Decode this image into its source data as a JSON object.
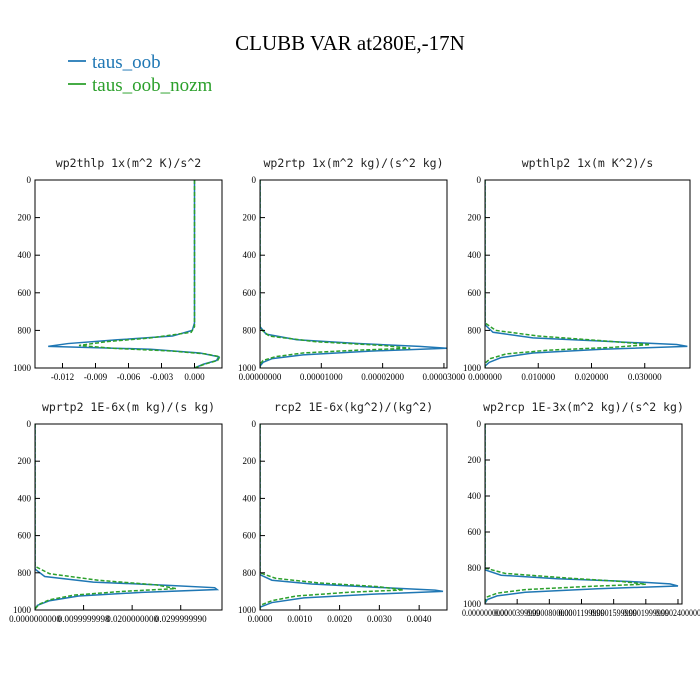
{
  "title": "CLUBB VAR at280E,-17N",
  "legend": [
    {
      "name": "taus_oob",
      "color": "#1f77b4",
      "style": "solid"
    },
    {
      "name": "taus_oob_nozm",
      "color": "#2ca02c",
      "style": "dashed"
    }
  ],
  "chart_data": [
    {
      "type": "line",
      "title": "wp2thlp  1x(m^2 K)/s^2",
      "xlim": [
        -0.0145,
        0.0025
      ],
      "ylim": [
        1000,
        0
      ],
      "xticks": [
        -0.012,
        -0.009,
        -0.006,
        -0.003,
        0.0
      ],
      "xtick_labels": [
        "-0.012",
        "-0.009",
        "-0.006",
        "-0.003",
        "0.000"
      ],
      "yticks": [
        0,
        200,
        400,
        600,
        800,
        1000
      ],
      "ytick_labels": [
        "0",
        "200",
        "400",
        "600",
        "800",
        "1000"
      ],
      "series": [
        {
          "name": "taus_oob",
          "y": [
            0,
            760,
            800,
            830,
            850,
            870,
            885,
            900,
            920,
            940,
            960,
            980,
            1000
          ],
          "x": [
            0.0,
            0.0,
            -0.0002,
            -0.002,
            -0.007,
            -0.0115,
            -0.0133,
            -0.004,
            0.0005,
            0.0022,
            0.002,
            0.0008,
            0.0
          ]
        },
        {
          "name": "taus_oob_nozm",
          "y": [
            0,
            780,
            810,
            840,
            860,
            880,
            895,
            910,
            925,
            940,
            960,
            980,
            1000
          ],
          "x": [
            0.0,
            0.0,
            -0.0003,
            -0.004,
            -0.008,
            -0.0105,
            -0.0075,
            -0.002,
            0.001,
            0.0023,
            0.0021,
            0.0009,
            0.0
          ]
        }
      ]
    },
    {
      "type": "line",
      "title": "wp2rtp  1x(m^2 kg)/(s^2 kg)",
      "xlim": [
        0.0,
        3.05e-05
      ],
      "ylim": [
        1000,
        0
      ],
      "xticks": [
        0.0,
        1e-05,
        2e-05,
        3e-05
      ],
      "xtick_labels": [
        "0.00000000",
        "0.00001000",
        "0.00002000",
        "0.00003000"
      ],
      "yticks": [
        0,
        200,
        400,
        600,
        800,
        1000
      ],
      "ytick_labels": [
        "0",
        "200",
        "400",
        "600",
        "800",
        "1000"
      ],
      "series": [
        {
          "name": "taus_oob",
          "y": [
            0,
            780,
            820,
            850,
            870,
            885,
            895,
            910,
            930,
            950,
            970,
            990,
            1000
          ],
          "x": [
            0.0,
            0.0,
            1e-06,
            6e-06,
            1.6e-05,
            2.6e-05,
            3.05e-05,
            1.8e-05,
            7e-06,
            2e-06,
            5e-07,
            0.0,
            0.0
          ]
        },
        {
          "name": "taus_oob_nozm",
          "y": [
            0,
            790,
            830,
            860,
            880,
            895,
            905,
            920,
            940,
            960,
            980,
            1000
          ],
          "x": [
            0.0,
            0.0,
            1.5e-06,
            9e-06,
            2e-05,
            2.45e-05,
            1.6e-05,
            7e-06,
            2.5e-06,
            5e-07,
            0.0,
            0.0
          ]
        }
      ]
    },
    {
      "type": "line",
      "title": "wpthlp2  1x(m K^2)/s",
      "xlim": [
        0.0,
        0.0385
      ],
      "ylim": [
        1000,
        0
      ],
      "xticks": [
        0.0,
        0.01,
        0.02,
        0.03
      ],
      "xtick_labels": [
        "0.000000",
        "0.010000",
        "0.020000",
        "0.030000"
      ],
      "yticks": [
        0,
        200,
        400,
        600,
        800,
        1000
      ],
      "ytick_labels": [
        "0",
        "200",
        "400",
        "600",
        "800",
        "1000"
      ],
      "series": [
        {
          "name": "taus_oob",
          "y": [
            0,
            770,
            810,
            840,
            860,
            875,
            885,
            900,
            920,
            945,
            970,
            990,
            1000
          ],
          "x": [
            0.0,
            0.0,
            0.0015,
            0.009,
            0.024,
            0.036,
            0.038,
            0.022,
            0.009,
            0.003,
            0.0008,
            0.0,
            0.0
          ]
        },
        {
          "name": "taus_oob_nozm",
          "y": [
            0,
            760,
            800,
            830,
            855,
            875,
            890,
            905,
            925,
            950,
            975,
            1000
          ],
          "x": [
            0.0,
            0.0,
            0.002,
            0.01,
            0.022,
            0.031,
            0.024,
            0.012,
            0.004,
            0.001,
            0.0,
            0.0
          ]
        }
      ]
    },
    {
      "type": "line",
      "title": "wprtp2  1E-6x(m kg)/(s kg)",
      "xlim": [
        0.0,
        0.0385
      ],
      "ylim": [
        1000,
        0
      ],
      "xticks": [
        0.0,
        0.01,
        0.02,
        0.03
      ],
      "xtick_labels": [
        "0.0000000000",
        "0.0099999998",
        "0.0200000000",
        "0.0299999990"
      ],
      "yticks": [
        0,
        200,
        400,
        600,
        800,
        1000
      ],
      "ytick_labels": [
        "0",
        "200",
        "400",
        "600",
        "800",
        "1000"
      ],
      "series": [
        {
          "name": "taus_oob",
          "y": [
            0,
            780,
            820,
            850,
            868,
            880,
            890,
            905,
            925,
            950,
            975,
            995,
            1000
          ],
          "x": [
            0.0,
            0.0,
            0.002,
            0.012,
            0.028,
            0.037,
            0.0375,
            0.022,
            0.009,
            0.003,
            0.0005,
            0.0,
            0.0
          ]
        },
        {
          "name": "taus_oob_nozm",
          "y": [
            0,
            765,
            805,
            840,
            865,
            885,
            900,
            920,
            945,
            970,
            995,
            1000
          ],
          "x": [
            0.0,
            0.0,
            0.003,
            0.013,
            0.025,
            0.029,
            0.018,
            0.008,
            0.003,
            0.0008,
            0.0,
            0.0
          ]
        }
      ]
    },
    {
      "type": "line",
      "title": "rcp2  1E-6x(kg^2)/(kg^2)",
      "xlim": [
        0.0,
        0.0047
      ],
      "ylim": [
        1000,
        0
      ],
      "xticks": [
        0.0,
        0.001,
        0.002,
        0.003,
        0.004
      ],
      "xtick_labels": [
        "0.0000",
        "0.0010",
        "0.0020",
        "0.0030",
        "0.0040"
      ],
      "yticks": [
        0,
        200,
        400,
        600,
        800,
        1000
      ],
      "ytick_labels": [
        "0",
        "200",
        "400",
        "600",
        "800",
        "1000"
      ],
      "series": [
        {
          "name": "taus_oob",
          "y": [
            0,
            810,
            840,
            860,
            880,
            893,
            900,
            915,
            935,
            960,
            985,
            1000
          ],
          "x": [
            0.0,
            0.0,
            0.0003,
            0.0013,
            0.0031,
            0.0044,
            0.0046,
            0.0028,
            0.0011,
            0.0003,
            0.0,
            0.0
          ]
        },
        {
          "name": "taus_oob_nozm",
          "y": [
            0,
            800,
            830,
            855,
            875,
            892,
            905,
            925,
            950,
            975,
            1000
          ],
          "x": [
            0.0,
            0.0,
            0.0004,
            0.0015,
            0.003,
            0.0036,
            0.0022,
            0.0009,
            0.0003,
            0.0,
            0.0
          ]
        }
      ]
    },
    {
      "type": "line",
      "title": "wp2rcp  1E-3x(m^2 kg)/(s^2 kg)",
      "xlim": [
        0.0,
        0.000245
      ],
      "ylim": [
        1000,
        0
      ],
      "xticks": [
        0.0,
        4e-05,
        8e-05,
        0.00012,
        0.00016,
        0.0002,
        0.00024
      ],
      "xtick_labels": [
        "0.0000000000",
        "0.0000399999",
        "0.0000800000",
        "0.0001199999",
        "0.0001599999",
        "0.0001999999",
        "0.0002400000"
      ],
      "yticks": [
        0,
        200,
        400,
        600,
        800,
        1000
      ],
      "ytick_labels": [
        "0",
        "200",
        "400",
        "600",
        "800",
        "1000"
      ],
      "series": [
        {
          "name": "taus_oob",
          "y": [
            0,
            810,
            840,
            860,
            875,
            888,
            900,
            915,
            935,
            955,
            975,
            995,
            1000
          ],
          "x": [
            0.0,
            0.0,
            2e-05,
            9e-05,
            0.00018,
            0.00023,
            0.00024,
            0.00014,
            5e-05,
            1.5e-05,
            3e-06,
            0.0,
            0.0
          ]
        },
        {
          "name": "taus_oob_nozm",
          "y": [
            0,
            800,
            830,
            855,
            875,
            890,
            902,
            920,
            940,
            960,
            985,
            1000
          ],
          "x": [
            0.0,
            0.0,
            2.5e-05,
            0.0001,
            0.00017,
            0.0002,
            0.00013,
            5e-05,
            1.5e-05,
            3e-06,
            0.0,
            0.0
          ]
        }
      ]
    }
  ]
}
